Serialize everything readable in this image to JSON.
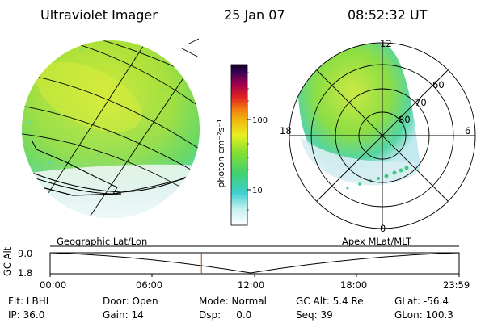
{
  "header": {
    "instrument": "Ultraviolet Imager",
    "date": "25 Jan 07",
    "time": "08:52:32 UT"
  },
  "colorbar": {
    "unit_label": "photon cm⁻²s⁻¹",
    "ticks": [
      "100",
      "10"
    ]
  },
  "polar_plot": {
    "mlt_labels": [
      "12",
      "18",
      "6",
      "0"
    ],
    "lat_labels": [
      "60",
      "70",
      "80"
    ]
  },
  "timeline": {
    "left_title": "Geographic Lat/Lon",
    "right_title": "Apex MLat/MLT",
    "axis_label": "GC Alt",
    "y_ticks": [
      "9.0",
      "1.8"
    ],
    "x_ticks": [
      "00:00",
      "06:00",
      "12:00",
      "18:00",
      "23:59"
    ],
    "current_time_fraction": 0.37
  },
  "status": {
    "filter": "Flt: LBHL",
    "ip": "IP: 36.0",
    "door": "Door: Open",
    "gain": "Gain: 14",
    "mode": "Mode: Normal",
    "dsp": "Dsp:     0.0",
    "gc_alt": "GC Alt: 5.4 Re",
    "seq": "Seq: 39",
    "glat": "GLat: -56.4",
    "glon": "GLon: 100.3"
  },
  "colors": {
    "aurora_green": "#a8e03a",
    "aurora_yellow": "#d8ec3a",
    "aurora_cyan": "#46d6c8",
    "marker_red": "#c0392b"
  }
}
